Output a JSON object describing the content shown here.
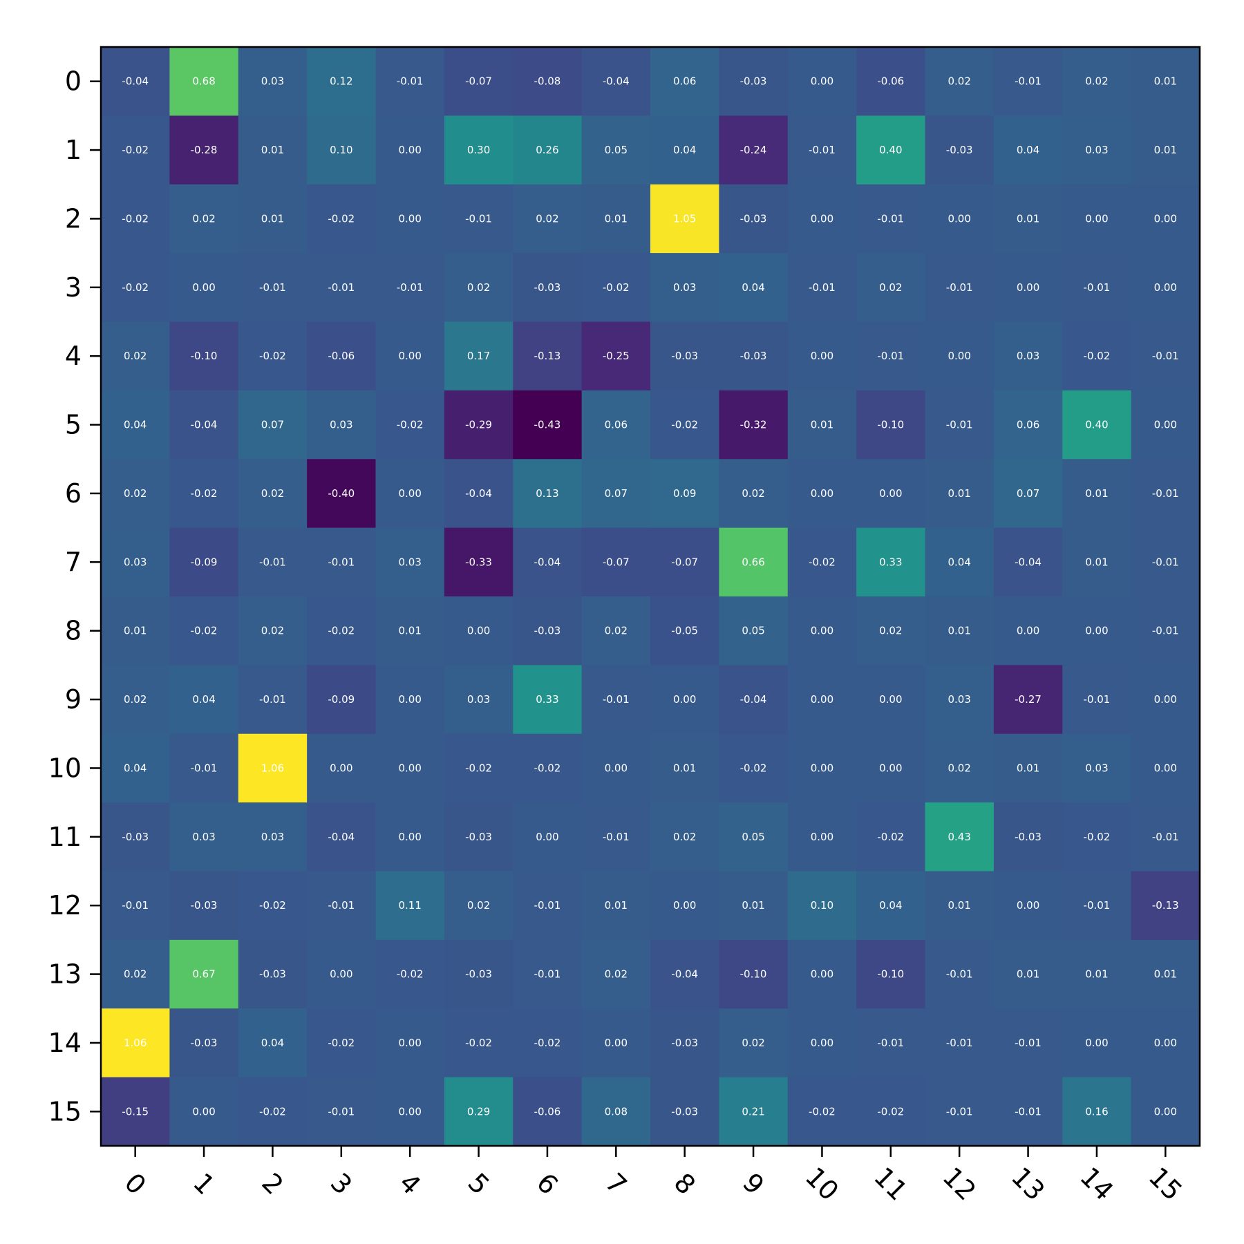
{
  "chart_data": {
    "type": "heatmap",
    "title": "",
    "xlabel": "",
    "ylabel": "",
    "colormap": "viridis",
    "color_range": [
      -0.43,
      1.06
    ],
    "x_categories": [
      "0",
      "1",
      "2",
      "3",
      "4",
      "5",
      "6",
      "7",
      "8",
      "9",
      "10",
      "11",
      "12",
      "13",
      "14",
      "15"
    ],
    "y_categories": [
      "0",
      "1",
      "2",
      "3",
      "4",
      "5",
      "6",
      "7",
      "8",
      "9",
      "10",
      "11",
      "12",
      "13",
      "14",
      "15"
    ],
    "values": [
      [
        -0.04,
        0.68,
        0.03,
        0.12,
        -0.01,
        -0.07,
        -0.08,
        -0.04,
        0.06,
        -0.03,
        -0.0,
        -0.06,
        0.02,
        -0.01,
        0.02,
        0.01
      ],
      [
        -0.02,
        -0.28,
        0.01,
        0.1,
        0.0,
        0.3,
        0.26,
        0.05,
        0.04,
        -0.24,
        -0.01,
        0.4,
        -0.03,
        0.04,
        0.03,
        0.01
      ],
      [
        -0.02,
        0.02,
        0.01,
        -0.02,
        0.0,
        -0.01,
        0.02,
        0.01,
        1.05,
        -0.03,
        0.0,
        -0.01,
        0.0,
        0.01,
        -0.0,
        -0.0
      ],
      [
        -0.02,
        -0.0,
        -0.01,
        -0.01,
        -0.01,
        0.02,
        -0.03,
        -0.02,
        0.03,
        0.04,
        -0.01,
        0.02,
        -0.01,
        0.0,
        -0.01,
        0.0
      ],
      [
        0.02,
        -0.1,
        -0.02,
        -0.06,
        0.0,
        0.17,
        -0.13,
        -0.25,
        -0.03,
        -0.03,
        0.0,
        -0.01,
        0.0,
        0.03,
        -0.02,
        -0.01
      ],
      [
        0.04,
        -0.04,
        0.07,
        0.03,
        -0.02,
        -0.29,
        -0.43,
        0.06,
        -0.02,
        -0.32,
        0.01,
        -0.1,
        -0.01,
        0.06,
        0.4,
        -0.0
      ],
      [
        0.02,
        -0.02,
        0.02,
        -0.4,
        0.0,
        -0.04,
        0.13,
        0.07,
        0.09,
        0.02,
        0.0,
        0.0,
        0.01,
        0.07,
        0.01,
        -0.01
      ],
      [
        0.03,
        -0.09,
        -0.01,
        -0.01,
        0.03,
        -0.33,
        -0.04,
        -0.07,
        -0.07,
        0.66,
        -0.02,
        0.33,
        0.04,
        -0.04,
        0.01,
        -0.01
      ],
      [
        0.01,
        -0.02,
        0.02,
        -0.02,
        0.01,
        -0.0,
        -0.03,
        0.02,
        -0.05,
        0.05,
        0.0,
        0.02,
        0.01,
        -0.0,
        -0.0,
        -0.01
      ],
      [
        0.02,
        0.04,
        -0.01,
        -0.09,
        -0.0,
        0.03,
        0.33,
        -0.01,
        0.0,
        -0.04,
        -0.0,
        -0.0,
        0.03,
        -0.27,
        -0.01,
        -0.0
      ],
      [
        0.04,
        -0.01,
        1.06,
        0.0,
        -0.0,
        -0.02,
        -0.02,
        0.0,
        0.01,
        -0.02,
        -0.0,
        0.0,
        0.02,
        0.01,
        0.03,
        0.0
      ],
      [
        -0.03,
        0.03,
        0.03,
        -0.04,
        0.0,
        -0.03,
        0.0,
        -0.01,
        0.02,
        0.05,
        0.0,
        -0.02,
        0.43,
        -0.03,
        -0.02,
        -0.01
      ],
      [
        -0.01,
        -0.03,
        -0.02,
        -0.01,
        0.11,
        0.02,
        -0.01,
        0.01,
        -0.0,
        0.01,
        0.1,
        0.04,
        0.01,
        0.0,
        -0.01,
        -0.13
      ],
      [
        0.02,
        0.67,
        -0.03,
        0.0,
        -0.02,
        -0.03,
        -0.01,
        0.02,
        -0.04,
        -0.1,
        0.0,
        -0.1,
        -0.01,
        0.01,
        0.01,
        0.01
      ],
      [
        1.06,
        -0.03,
        0.04,
        -0.02,
        0.0,
        -0.02,
        -0.02,
        -0.0,
        -0.03,
        0.02,
        -0.0,
        -0.01,
        -0.01,
        -0.01,
        -0.0,
        -0.0
      ],
      [
        -0.15,
        0.0,
        -0.02,
        -0.01,
        0.0,
        0.29,
        -0.06,
        0.08,
        -0.03,
        0.21,
        -0.02,
        -0.02,
        -0.01,
        -0.01,
        0.16,
        0.0
      ]
    ],
    "legend": "none",
    "grid": false,
    "x_tick_rotation": 45,
    "cell_label_color": "#ffffff",
    "cell_label_format": "2 decimals"
  }
}
